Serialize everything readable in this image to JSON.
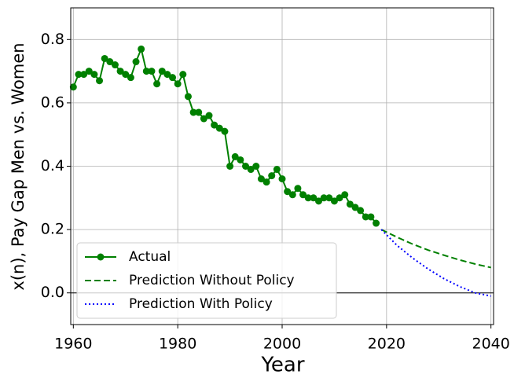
{
  "chart_data": {
    "type": "line",
    "xlabel": "Year",
    "ylabel": "x(n), Pay Gap Men vs. Women",
    "xlim": [
      1959.5,
      2040.5
    ],
    "ylim": [
      -0.1,
      0.9
    ],
    "xticks": [
      1960,
      1980,
      2000,
      2020,
      2040
    ],
    "yticks": [
      {
        "value": 0,
        "label": "0.0"
      },
      0.2,
      0.4,
      0.6,
      0.8
    ],
    "grid": true,
    "hline": 0,
    "legend": "lower left",
    "series": [
      {
        "name": "Actual",
        "color": "#008000",
        "style": "solid",
        "marker": true,
        "x": [
          1960,
          1961,
          1962,
          1963,
          1964,
          1965,
          1966,
          1967,
          1968,
          1969,
          1970,
          1971,
          1972,
          1973,
          1974,
          1975,
          1976,
          1977,
          1978,
          1979,
          1980,
          1981,
          1982,
          1983,
          1984,
          1985,
          1986,
          1987,
          1988,
          1989,
          1990,
          1991,
          1992,
          1993,
          1994,
          1995,
          1996,
          1997,
          1998,
          1999,
          2000,
          2001,
          2002,
          2003,
          2004,
          2005,
          2006,
          2007,
          2008,
          2009,
          2010,
          2011,
          2012,
          2013,
          2014,
          2015,
          2016,
          2017,
          2018
        ],
        "values": [
          0.65,
          0.69,
          0.69,
          0.7,
          0.69,
          0.67,
          0.74,
          0.73,
          0.72,
          0.7,
          0.69,
          0.68,
          0.73,
          0.77,
          0.7,
          0.7,
          0.66,
          0.7,
          0.69,
          0.68,
          0.66,
          0.69,
          0.62,
          0.57,
          0.57,
          0.55,
          0.56,
          0.53,
          0.52,
          0.51,
          0.4,
          0.43,
          0.42,
          0.4,
          0.39,
          0.4,
          0.36,
          0.35,
          0.37,
          0.39,
          0.36,
          0.32,
          0.31,
          0.33,
          0.31,
          0.3,
          0.3,
          0.29,
          0.3,
          0.3,
          0.29,
          0.3,
          0.31,
          0.28,
          0.27,
          0.26,
          0.24,
          0.24,
          0.22
        ]
      },
      {
        "name": "Prediction Without Policy",
        "color": "#008000",
        "style": "dashed",
        "marker": false,
        "x": [
          2019,
          2022,
          2025,
          2028,
          2031,
          2034,
          2037,
          2040
        ],
        "values": [
          0.2,
          0.176,
          0.154,
          0.135,
          0.119,
          0.104,
          0.091,
          0.08
        ]
      },
      {
        "name": "Prediction With Policy",
        "color": "#0000ff",
        "style": "dotted",
        "marker": false,
        "x": [
          2019,
          2022,
          2025,
          2028,
          2031,
          2034,
          2037,
          2040
        ],
        "values": [
          0.2,
          0.15,
          0.11,
          0.075,
          0.045,
          0.02,
          0.0,
          -0.01
        ]
      }
    ]
  }
}
